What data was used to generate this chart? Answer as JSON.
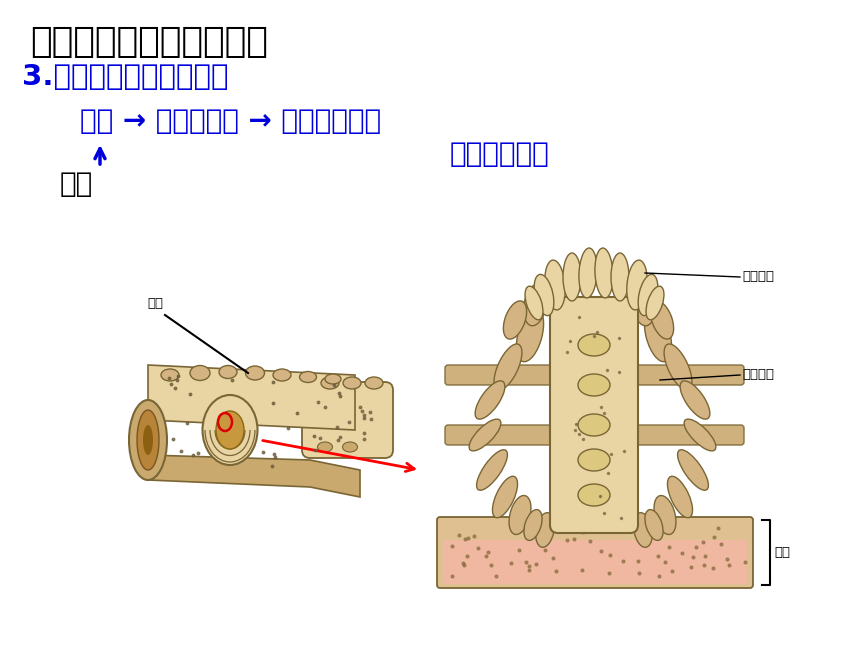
{
  "title1": "三、小肠适合消化的特点",
  "title2": "3.小肠很长且能分泌肠液",
  "line1_part1": "肠液 → 多种消化酶 → 能消化脂肪、",
  "line1_part2": "蛋白质和糖类",
  "label_changjian": "肠腺",
  "label_xiaochang": "小肠",
  "label_rongmao": "小肠绒毛",
  "label_huanxing": "环形皱襞",
  "label_changbi": "肠壁",
  "title1_color": "#000000",
  "title2_color": "#0000dd",
  "text_color": "#0000dd",
  "bg_color": "#ffffff",
  "tan": "#d4b483",
  "dark_tan": "#a8834a",
  "light_tan": "#e8d5a3",
  "medium_tan": "#c9a96e",
  "pink": "#f5b8a8",
  "brown_dot": "#6b5a3a",
  "edge_color": "#7a6535"
}
